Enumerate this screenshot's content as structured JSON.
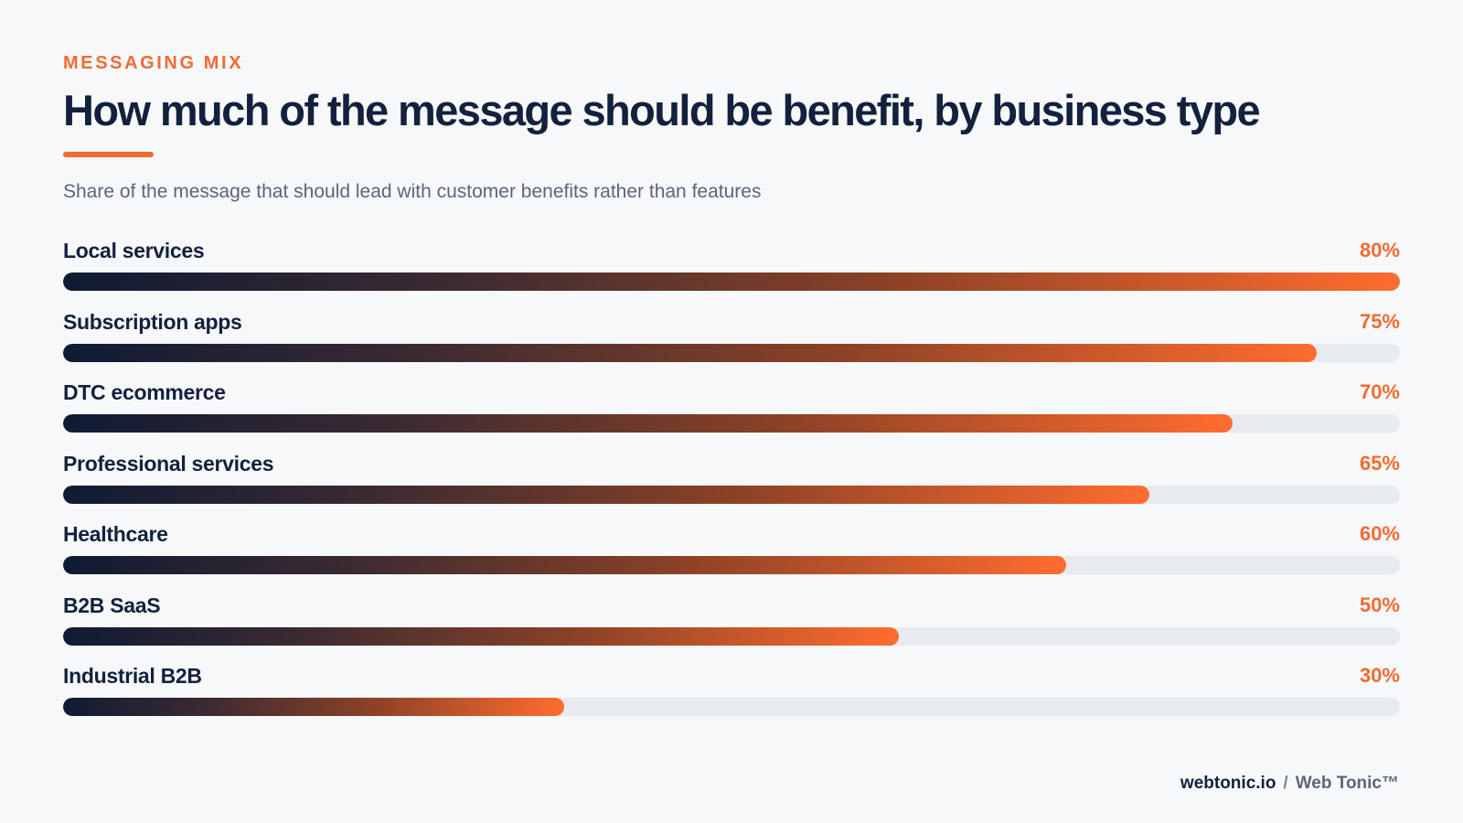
{
  "header": {
    "eyebrow": "MESSAGING MIX",
    "title": "How much of the message should be benefit, by business type",
    "subtitle": "Share of the message that should lead with customer benefits rather than features"
  },
  "colors": {
    "accent": "#f36a32",
    "navy": "#13213d",
    "track": "#e7eaee",
    "background": "#f6f8fa"
  },
  "chart_data": {
    "type": "bar",
    "orientation": "horizontal",
    "categories": [
      "Local services",
      "Subscription apps",
      "DTC ecommerce",
      "Professional services",
      "Healthcare",
      "B2B SaaS",
      "Industrial B2B"
    ],
    "values": [
      80,
      75,
      70,
      65,
      60,
      50,
      30
    ],
    "value_labels": [
      "80%",
      "75%",
      "70%",
      "65%",
      "60%",
      "50%",
      "30%"
    ],
    "xlim": [
      0,
      80
    ],
    "grid": false,
    "legend": "none"
  },
  "footer": {
    "site": "webtonic.io",
    "separator": "/",
    "brand": "Web Tonic™"
  }
}
